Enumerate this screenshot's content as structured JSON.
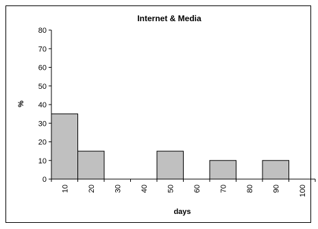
{
  "chart_data": {
    "type": "bar",
    "title": "Internet & Media",
    "xlabel": "days",
    "ylabel": "%",
    "categories": [
      "10",
      "20",
      "30",
      "40",
      "50",
      "60",
      "70",
      "80",
      "90",
      "100"
    ],
    "values": [
      35,
      15,
      0,
      0,
      15,
      0,
      10,
      0,
      10,
      0
    ],
    "ylim": [
      0,
      80
    ],
    "yticks": [
      0,
      10,
      20,
      30,
      40,
      50,
      60,
      70,
      80
    ],
    "grid": false,
    "legend": "none",
    "colors": {
      "bar": "#c0c0c0",
      "bar_border": "#000000",
      "axis": "#000000"
    }
  }
}
